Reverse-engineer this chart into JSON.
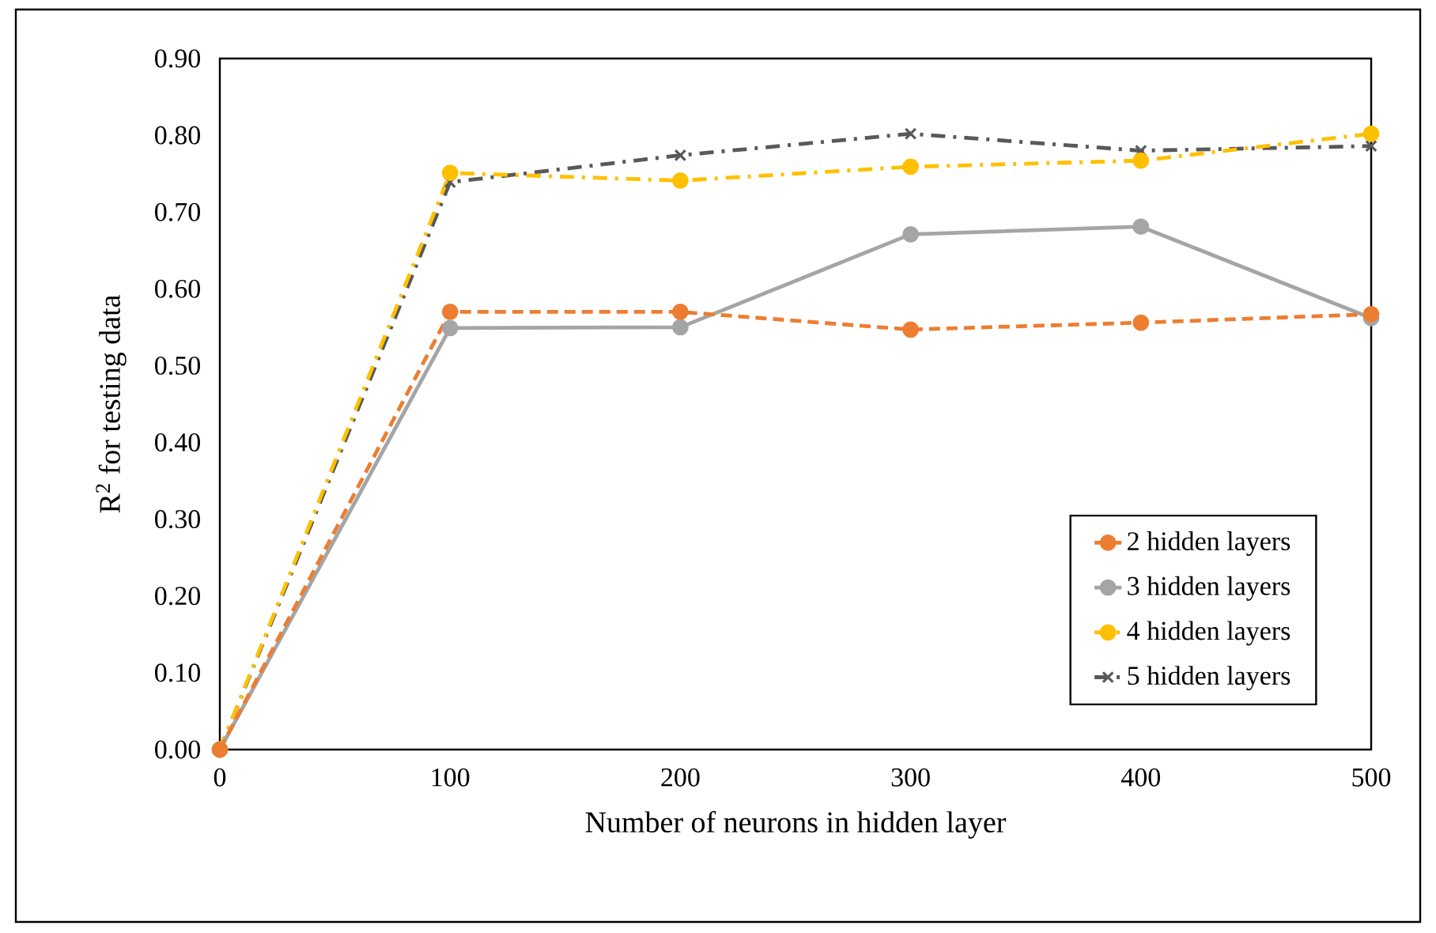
{
  "chart_data": {
    "type": "line",
    "xlabel": "Number of neurons in hidden layer",
    "ylabel": "R$^{2}$ for testing data",
    "x": [
      0,
      100,
      200,
      300,
      400,
      500
    ],
    "series": [
      {
        "name": "2 hidden layers",
        "color": "#ed7d31",
        "marker": "circle",
        "line_style": "dashed",
        "values": [
          0.0,
          0.57,
          0.57,
          0.547,
          0.556,
          0.567
        ]
      },
      {
        "name": "3 hidden layers",
        "color": "#a5a5a5",
        "marker": "circle",
        "line_style": "solid",
        "values": [
          0.0,
          0.549,
          0.55,
          0.671,
          0.681,
          0.562
        ]
      },
      {
        "name": "4 hidden layers",
        "color": "#ffc000",
        "marker": "circle",
        "line_style": "dashdot",
        "values": [
          0.0,
          0.751,
          0.741,
          0.759,
          0.767,
          0.802
        ]
      },
      {
        "name": "5 hidden layers",
        "color": "#595959",
        "marker": "cross",
        "line_style": "dashdot",
        "values": [
          0.0,
          0.739,
          0.774,
          0.802,
          0.78,
          0.786
        ]
      }
    ],
    "xlim": [
      0,
      500
    ],
    "xticks": [
      0,
      100,
      200,
      300,
      400,
      500
    ],
    "ylim": [
      0,
      0.9
    ],
    "yticks": [
      {
        "value": 0.0,
        "label": "0.00"
      },
      {
        "value": 0.1,
        "label": "0.10"
      },
      {
        "value": 0.2,
        "label": "0.20"
      },
      {
        "value": 0.3,
        "label": "0.30"
      },
      {
        "value": 0.4,
        "label": "0.40"
      },
      {
        "value": 0.5,
        "label": "0.50"
      },
      {
        "value": 0.6,
        "label": "0.60"
      },
      {
        "value": 0.7,
        "label": "0.70"
      },
      {
        "value": 0.8,
        "label": "0.80"
      },
      {
        "value": 0.9,
        "label": "0.90"
      }
    ],
    "grid": false,
    "legend": "bottom right"
  }
}
